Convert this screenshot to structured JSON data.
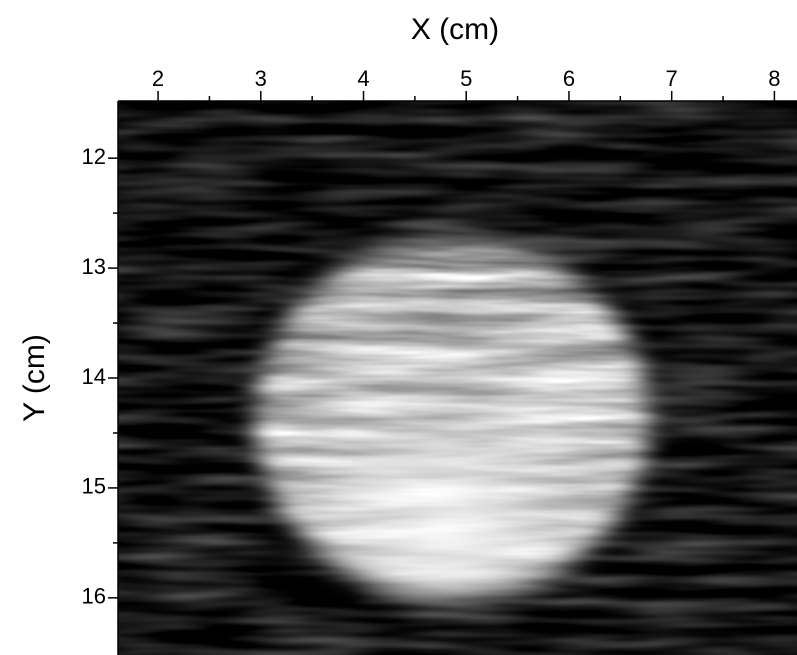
{
  "chart_data": {
    "type": "image",
    "xlabel": "X (cm)",
    "ylabel": "Y (cm)",
    "xlim": [
      1.61,
      8.22
    ],
    "ylim": [
      16.52,
      11.48
    ],
    "xticks": [
      2,
      3,
      4,
      5,
      6,
      7,
      8
    ],
    "xticks_minor": [
      2.5,
      3.5,
      4.5,
      5.5,
      6.5,
      7.5
    ],
    "yticks": [
      12,
      13,
      14,
      15,
      16
    ],
    "yticks_minor": [
      12.5,
      13.5,
      14.5,
      15.5
    ]
  }
}
